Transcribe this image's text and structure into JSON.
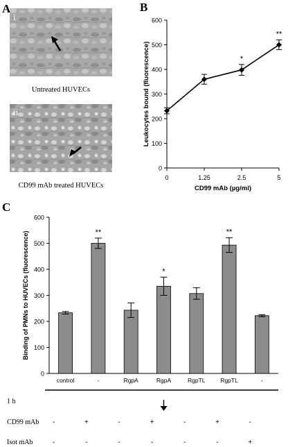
{
  "panels": {
    "A": {
      "letter": "A",
      "images": [
        {
          "roman": "i",
          "caption": "Untreated HUVECs"
        },
        {
          "roman": "ii",
          "caption": "CD99 mAb treated HUVECs"
        }
      ]
    },
    "B": {
      "letter": "B"
    },
    "C": {
      "letter": "C"
    }
  },
  "chart_data": [
    {
      "panel": "B",
      "type": "line",
      "title": "",
      "xlabel": "CD99 mAb (µg/ml)",
      "ylabel": "Leukocytes bound (fluorescence)",
      "x": [
        "0",
        "1.25",
        "2.5",
        "5"
      ],
      "series": [
        {
          "values": [
            232,
            360,
            398,
            500
          ],
          "errors": [
            12,
            20,
            22,
            20
          ]
        }
      ],
      "annotations": [
        "",
        "",
        "*",
        "**"
      ],
      "ylim": [
        0,
        600
      ],
      "yticks": [
        0,
        100,
        200,
        300,
        400,
        500,
        600
      ],
      "grid": false
    },
    {
      "panel": "C",
      "type": "bar",
      "title": "",
      "xlabel": "",
      "ylabel": "Binding of PMNs to HUVECs (fluorescence)",
      "categories": [
        "control",
        "-",
        "RgpA",
        "RgpA",
        "RgpTL",
        "RgpTL",
        "-"
      ],
      "values": [
        233,
        500,
        243,
        335,
        307,
        493,
        222
      ],
      "errors": [
        5,
        20,
        28,
        35,
        22,
        28,
        4
      ],
      "annotations": [
        "",
        "**",
        "",
        "*",
        "",
        "**",
        ""
      ],
      "ylim": [
        0,
        600
      ],
      "yticks": [
        0,
        100,
        200,
        300,
        400,
        500,
        600
      ],
      "bar_color": "#8c8c8c",
      "grid": false,
      "treatment_rows": [
        {
          "label": "1 h",
          "values": [
            "",
            "",
            "",
            "",
            "",
            "",
            ""
          ]
        },
        {
          "label": "CD99 mAb",
          "values": [
            "-",
            "+",
            "-",
            "+",
            "-",
            "+",
            "-"
          ]
        },
        {
          "label": "Isot mAb",
          "values": [
            "-",
            "-",
            "-",
            "-",
            "-",
            "-",
            "+"
          ]
        }
      ]
    }
  ]
}
